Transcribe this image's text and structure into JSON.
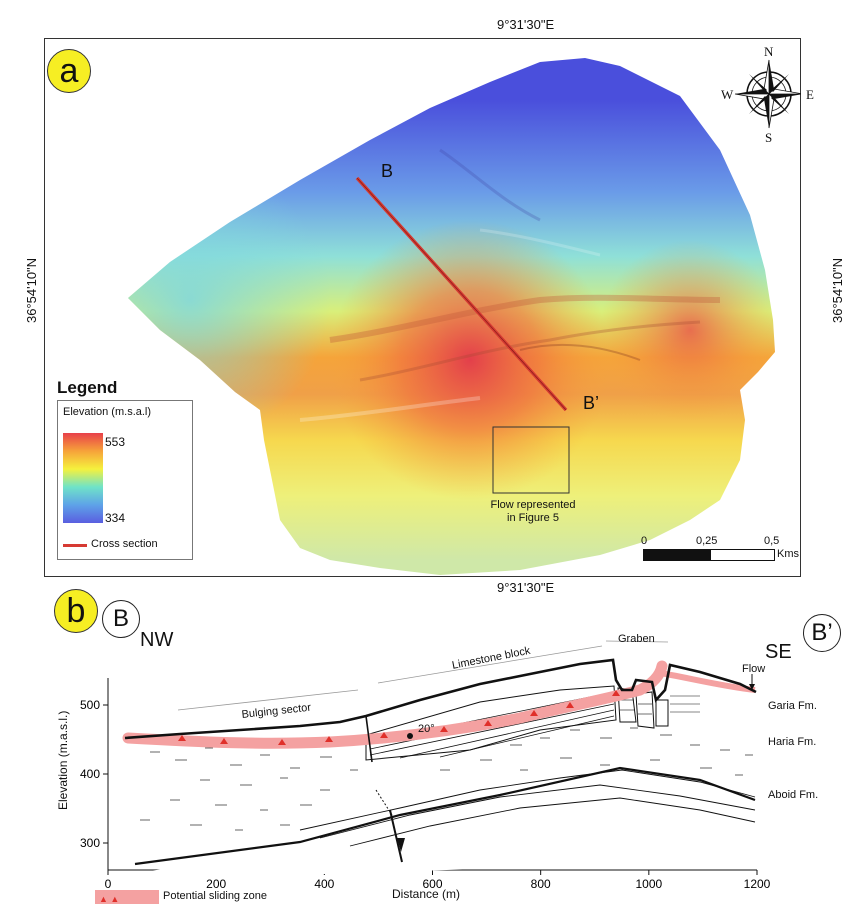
{
  "panel_a": {
    "letter": "a",
    "lon_top": "9°31'30\"E",
    "lon_bottom": "9°31'30\"E",
    "lat_left": "36°54'10\"N",
    "lat_right": "36°54'10\"N",
    "section_start": "B",
    "section_end": "B’",
    "flow_note_line1": "Flow represented",
    "flow_note_line2": "in Figure 5",
    "compass": {
      "n": "N",
      "s": "S",
      "e": "E",
      "w": "W"
    },
    "scale": {
      "t0": "0",
      "t1": "0,25",
      "t2": "0,5",
      "unit": "Kms"
    },
    "legend": {
      "title": "Legend",
      "elev_title": "Elevation (m.s.a.l)",
      "max": "553",
      "min": "334",
      "cross_section": "Cross section",
      "ramp_colors": [
        "#e8404a",
        "#f6a23a",
        "#f5f13d",
        "#6fe3c8",
        "#5ea2e8",
        "#5a5ee0"
      ],
      "line_color": "#d63a33"
    }
  },
  "panel_b": {
    "letter": "b",
    "start_label": "B",
    "end_label": "B’",
    "nw": "NW",
    "se": "SE",
    "ylabel": "Elevation (m.a.s.l.)",
    "xlabel": "Distance (m)",
    "xticks": [
      "0",
      "200",
      "400",
      "600",
      "800",
      "1000",
      "1200"
    ],
    "yticks": [
      "300",
      "400",
      "500"
    ],
    "annotations": {
      "graben": "Graben",
      "limestone": "Limestone block",
      "bulging": "Bulging sector",
      "dip": "20°",
      "flow": "Flow"
    },
    "formations": [
      "Garia Fm.",
      "Haria Fm.",
      "Aboid Fm."
    ],
    "sliding_legend": "Potential sliding zone",
    "sliding_color": "#f4a1a1"
  }
}
